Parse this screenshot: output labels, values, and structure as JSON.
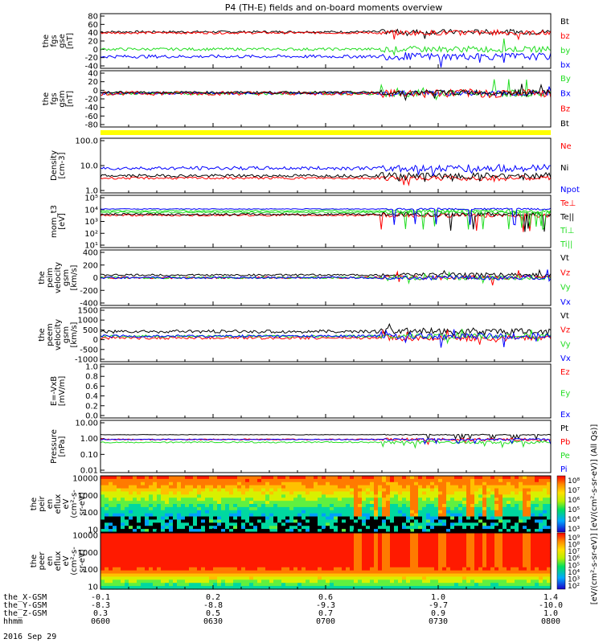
{
  "title": "P4 (TH-E) fields and on-board moments overview",
  "date": "2016 Sep 29",
  "colors": {
    "black": "#000000",
    "red": "#ff0000",
    "green": "#22dd22",
    "blue": "#0000ff",
    "yellow": "#ffff00"
  },
  "chart_data": [
    {
      "type": "line",
      "id": "fgs_gse",
      "ylabel": [
        "the",
        "fgs",
        "gse",
        "[nT]"
      ],
      "yticks": [
        "80",
        "60",
        "40",
        "20",
        "0",
        "-20",
        "-40"
      ],
      "ylim": [
        -40,
        80
      ],
      "series": [
        {
          "name": "Bt",
          "color": "black",
          "base": 40,
          "noise": 5
        },
        {
          "name": "bz",
          "color": "red",
          "base": 38,
          "noise": 5
        },
        {
          "name": "by",
          "color": "green",
          "base": 2,
          "noise": 6
        },
        {
          "name": "bx",
          "color": "blue",
          "base": -14,
          "noise": 7
        }
      ]
    },
    {
      "type": "line",
      "id": "fgs_gsm",
      "ylabel": [
        "the",
        "fgs",
        "gsm",
        "[nT]"
      ],
      "yticks": [
        "40",
        "20",
        "0",
        "-20",
        "-40",
        "-60",
        "-80"
      ],
      "ylim": [
        -90,
        50
      ],
      "series": [
        {
          "name": "By",
          "color": "green",
          "base": -6,
          "noise": 8
        },
        {
          "name": "Bx",
          "color": "blue",
          "base": -6,
          "noise": 6
        },
        {
          "name": "Bz",
          "color": "red",
          "base": -6,
          "noise": 10
        },
        {
          "name": "Bt",
          "color": "black",
          "base": -4,
          "noise": 6
        }
      ]
    },
    {
      "type": "line",
      "id": "density",
      "scale": "log",
      "ylabel": [
        "Density",
        "[cm-3]"
      ],
      "yticks": [
        "100.0",
        "10.0",
        "1.0"
      ],
      "ylim": [
        0.2,
        150
      ],
      "series": [
        {
          "name": "Ne",
          "color": "red",
          "base": 1.2,
          "noise": 0.4
        },
        {
          "name": "Ni",
          "color": "black",
          "base": 1.6,
          "noise": 0.5
        },
        {
          "name": "Npot",
          "color": "blue",
          "base": 4,
          "noise": 0.6
        }
      ]
    },
    {
      "type": "line",
      "id": "temperature",
      "scale": "log",
      "ylabel": [
        "mom_t3",
        "[eV]"
      ],
      "yticks": [
        "10⁵",
        "10⁴",
        "10³",
        "10²",
        "10¹"
      ],
      "ylim": [
        10,
        100000
      ],
      "series": [
        {
          "name": "Te⊥",
          "color": "red",
          "base": 3000,
          "noise": 0.5
        },
        {
          "name": "Te||",
          "color": "black",
          "base": 3500,
          "noise": 0.5
        },
        {
          "name": "Ti⊥",
          "color": "green",
          "base": 5000,
          "noise": 0.4
        },
        {
          "name": "Ti||",
          "color": "green",
          "base": 6500,
          "noise": 0.4
        },
        {
          "name": "",
          "color": "blue",
          "base": 9000,
          "noise": 0.2
        }
      ]
    },
    {
      "type": "line",
      "id": "peim_velocity",
      "ylabel": [
        "the",
        "peim",
        "velocity",
        "gsm",
        "[km/s]"
      ],
      "yticks": [
        "400",
        "200",
        "0",
        "-200",
        "-400"
      ],
      "ylim": [
        -420,
        420
      ],
      "series": [
        {
          "name": "Vt",
          "color": "black",
          "base": 40,
          "noise": 30
        },
        {
          "name": "Vz",
          "color": "red",
          "base": 0,
          "noise": 30
        },
        {
          "name": "Vy",
          "color": "green",
          "base": 0,
          "noise": 30
        },
        {
          "name": "Vx",
          "color": "blue",
          "base": 0,
          "noise": 30
        }
      ]
    },
    {
      "type": "line",
      "id": "peem_velocity",
      "ylabel": [
        "the",
        "peem",
        "velocity",
        "gsm",
        "[km/s]"
      ],
      "yticks": [
        "1500",
        "1000",
        "500",
        "0",
        "-500",
        "-1000"
      ],
      "ylim": [
        -1400,
        1550
      ],
      "series": [
        {
          "name": "Vt",
          "color": "black",
          "base": 250,
          "noise": 180
        },
        {
          "name": "Vz",
          "color": "red",
          "base": -100,
          "noise": 150
        },
        {
          "name": "Vy",
          "color": "green",
          "base": 0,
          "noise": 120
        },
        {
          "name": "Vx",
          "color": "blue",
          "base": 0,
          "noise": 150
        }
      ]
    },
    {
      "type": "line",
      "id": "efield",
      "ylabel": [
        "E=-VxB",
        "[mV/m]"
      ],
      "yticks": [
        "1.0",
        "0.8",
        "0.6",
        "0.4",
        "0.2",
        "0.0"
      ],
      "ylim": [
        0,
        1
      ],
      "series": [
        {
          "name": "Ez",
          "color": "red"
        },
        {
          "name": "Ey",
          "color": "green"
        },
        {
          "name": "Ex",
          "color": "blue"
        }
      ]
    },
    {
      "type": "line",
      "id": "pressure",
      "scale": "log",
      "ylabel": [
        "Pressure",
        "[nPa]"
      ],
      "yticks": [
        "10.00",
        "1.00",
        "0.10",
        "0.01"
      ],
      "ylim": [
        0.01,
        10
      ],
      "series": [
        {
          "name": "Pt",
          "color": "black",
          "base": 1.5,
          "noise": 0.08
        },
        {
          "name": "Pb",
          "color": "red",
          "base": 0.8,
          "noise": 0.25
        },
        {
          "name": "Pe",
          "color": "green",
          "base": 0.55,
          "noise": 0.25
        },
        {
          "name": "Pi",
          "color": "blue",
          "base": 0.8,
          "noise": 0.15
        }
      ]
    },
    {
      "type": "heatmap",
      "id": "peir_spectrogram",
      "scale": "log",
      "ylabel": [
        "the",
        "peir",
        "en",
        "eflux",
        "eV",
        "(cm²-s-",
        "sr-eV)"
      ],
      "yticks": [
        "10000",
        "1000",
        "100",
        "10"
      ],
      "colorbar_ticks": [
        "10⁸",
        "10⁷",
        "10⁶",
        "10⁵",
        "10⁴",
        "10³"
      ]
    },
    {
      "type": "heatmap",
      "id": "peer_spectrogram",
      "scale": "log",
      "ylabel": [
        "the",
        "peer",
        "en",
        "eflux",
        "eV",
        "(cm²-s-",
        "sr-eV)"
      ],
      "yticks": [
        "10000",
        "1000",
        "100",
        "10"
      ],
      "colorbar_ticks": [
        "10⁹",
        "10⁸",
        "10⁷",
        "10⁶",
        "10⁵",
        "10⁴",
        "10³",
        "10²"
      ]
    }
  ],
  "colorbar_label": "[eV/(cm²-s-sr-eV)] [eV/(cm²-s-sr-eV)] (All Qs)]",
  "xaxis": {
    "labels": [
      "the_X-GSM",
      "the_Y-GSM",
      "the_Z-GSM",
      "hhmm"
    ],
    "ticks": [
      [
        "-0.1",
        "-8.3",
        "0.3",
        "0600"
      ],
      [
        "0.2",
        "-8.8",
        "0.5",
        "0630"
      ],
      [
        "0.6",
        "-9.3",
        "0.7",
        "0700"
      ],
      [
        "1.0",
        "-9.7",
        "0.9",
        "0730"
      ],
      [
        "1.4",
        "-10.0",
        "1.0",
        "0800"
      ]
    ]
  }
}
